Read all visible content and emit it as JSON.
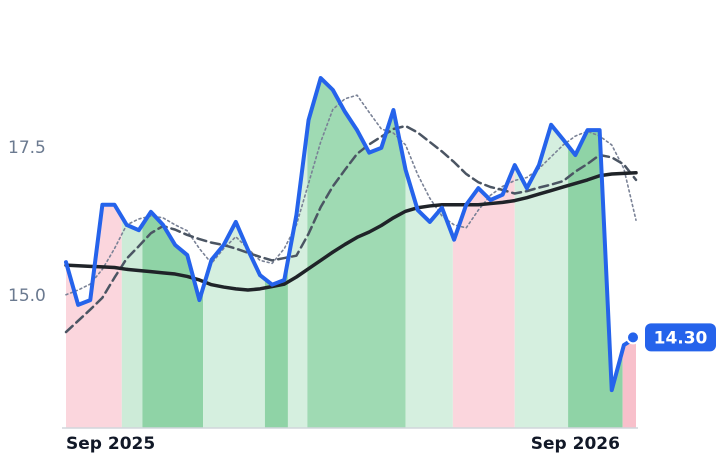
{
  "chart_data": {
    "type": "line",
    "categories": [
      "Sep 2025",
      null,
      null,
      null,
      null,
      null,
      null,
      null,
      null,
      null,
      null,
      null,
      null,
      null,
      null,
      null,
      null,
      null,
      null,
      null,
      null,
      null,
      null,
      null,
      null,
      null,
      null,
      null,
      null,
      null,
      null,
      null,
      null,
      null,
      null,
      null,
      null,
      null,
      null,
      null,
      null,
      null,
      "Sep 2026",
      null,
      null,
      null,
      null,
      null
    ],
    "ylim": [
      12.77,
      19.66
    ],
    "yticks": [
      {
        "value": 15,
        "label": "15.0"
      },
      17.5
    ],
    "grid": false,
    "series": [
      {
        "color": "#2563eb",
        "style": "solid",
        "width": 4,
        "area": true,
        "values": [
          15.57,
          14.85,
          14.93,
          16.54,
          16.54,
          16.2,
          16.11,
          16.42,
          16.2,
          15.86,
          15.69,
          14.93,
          15.61,
          15.86,
          16.25,
          15.78,
          15.35,
          15.19,
          15.27,
          16.37,
          17.97,
          18.68,
          18.48,
          18.11,
          17.8,
          17.42,
          17.5,
          18.14,
          17.13,
          16.45,
          16.25,
          16.49,
          15.95,
          16.54,
          16.82,
          16.62,
          16.71,
          17.21,
          16.82,
          17.21,
          17.89,
          17.64,
          17.38,
          17.8,
          17.8,
          13.41,
          14.17,
          14.3
        ],
        "last_label": "14.30"
      },
      {
        "color": "#1f2328",
        "style": "solid",
        "width": 3.5,
        "values": [
          15.52,
          15.51,
          15.5,
          15.49,
          15.48,
          15.45,
          15.43,
          15.41,
          15.39,
          15.37,
          15.33,
          15.27,
          15.19,
          15.15,
          15.12,
          15.1,
          15.12,
          15.16,
          15.2,
          15.32,
          15.46,
          15.6,
          15.74,
          15.87,
          15.99,
          16.08,
          16.19,
          16.32,
          16.43,
          16.49,
          16.52,
          16.54,
          16.54,
          16.54,
          16.54,
          16.56,
          16.58,
          16.61,
          16.66,
          16.72,
          16.78,
          16.84,
          16.9,
          16.96,
          17.03,
          17.06,
          17.07,
          17.08
        ]
      },
      {
        "color": "#4b5563",
        "style": "dashed",
        "width": 2.5,
        "values": [
          14.39,
          14.58,
          14.77,
          14.97,
          15.31,
          15.63,
          15.84,
          16.06,
          16.18,
          16.12,
          16.03,
          15.96,
          15.9,
          15.86,
          15.8,
          15.73,
          15.66,
          15.6,
          15.64,
          15.68,
          16.05,
          16.5,
          16.85,
          17.13,
          17.4,
          17.56,
          17.69,
          17.82,
          17.87,
          17.76,
          17.6,
          17.44,
          17.26,
          17.06,
          16.92,
          16.84,
          16.79,
          16.73,
          16.77,
          16.83,
          16.88,
          16.94,
          17.1,
          17.23,
          17.38,
          17.34,
          17.22,
          16.96
        ]
      },
      {
        "color": "#7a8296",
        "style": "dotted",
        "width": 1.6,
        "values": [
          15.02,
          15.1,
          15.2,
          15.45,
          15.8,
          16.2,
          16.3,
          16.35,
          16.32,
          16.2,
          16.1,
          15.8,
          15.55,
          15.8,
          16.0,
          15.8,
          15.6,
          15.55,
          15.8,
          16.2,
          16.9,
          17.6,
          18.15,
          18.33,
          18.39,
          18.1,
          17.82,
          17.75,
          17.55,
          17.05,
          16.65,
          16.35,
          16.2,
          16.15,
          16.45,
          16.7,
          16.85,
          16.95,
          17.0,
          17.15,
          17.35,
          17.55,
          17.7,
          17.78,
          17.7,
          17.55,
          17.15,
          16.28
        ]
      }
    ],
    "regions": [
      {
        "start": 0,
        "end": 4.6,
        "color": "#fbd6dd"
      },
      {
        "start": 4.6,
        "end": 6.3,
        "color": "#cdebd8"
      },
      {
        "start": 6.3,
        "end": 11.3,
        "color": "#8fd3a6"
      },
      {
        "start": 11.3,
        "end": 16.4,
        "color": "#d5efdf"
      },
      {
        "start": 16.4,
        "end": 18.3,
        "color": "#8fd3a6"
      },
      {
        "start": 18.3,
        "end": 19.9,
        "color": "#d5efdf"
      },
      {
        "start": 19.9,
        "end": 28.0,
        "color": "#9fdab3"
      },
      {
        "start": 28.0,
        "end": 31.9,
        "color": "#d5efdf"
      },
      {
        "start": 31.9,
        "end": 37.0,
        "color": "#fbd6dd"
      },
      {
        "start": 37.0,
        "end": 41.4,
        "color": "#d5efdf"
      },
      {
        "start": 41.4,
        "end": 45.9,
        "color": "#8fd3a6"
      },
      {
        "start": 45.9,
        "end": 47,
        "color": "#f8c0cb"
      }
    ]
  }
}
